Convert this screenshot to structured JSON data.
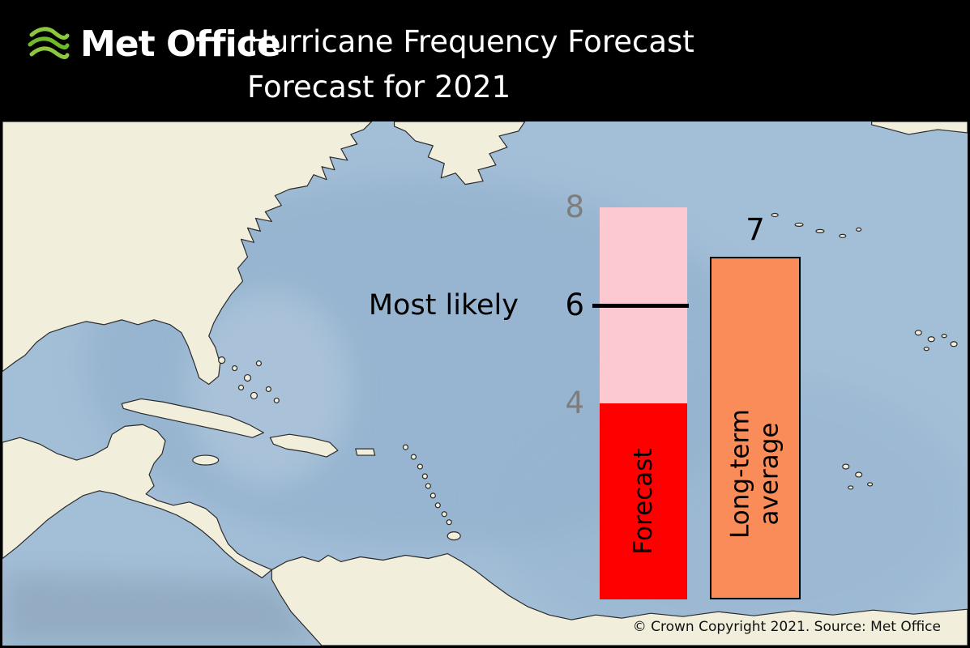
{
  "header": {
    "logo_text": "Met Office",
    "title": "Hurricane Frequency Forecast",
    "subtitle": "Forecast for 2021"
  },
  "footer": {
    "copyright": "© Crown Copyright 2021. Source: Met Office"
  },
  "colors": {
    "header_bg": "#000000",
    "ocean": "#A3BED7",
    "land": "#F2EEDC",
    "forecast_solid": "#FF0000",
    "forecast_range": "#FBC9CF",
    "long_term_average": "#FA8C5A",
    "most_likely_line": "#000000",
    "tick_gray": "#7D7D7D",
    "logo_green": "#8DC63F"
  },
  "chart_data": {
    "type": "bar",
    "title": "Hurricane Frequency Forecast",
    "subtitle": "Forecast for 2021",
    "ylabel": "",
    "xlabel": "",
    "ylim": [
      0,
      8
    ],
    "grid": false,
    "legend": "labels-inside-bars",
    "axis_ticks": [
      8,
      6,
      4
    ],
    "annotation": "Most likely",
    "series": [
      {
        "name": "Forecast",
        "type": "range_bar",
        "solid_to": 4,
        "range_low": 4,
        "range_high": 8,
        "most_likely": 6
      },
      {
        "name": "Long-term average",
        "type": "bar",
        "value": 7
      }
    ]
  }
}
